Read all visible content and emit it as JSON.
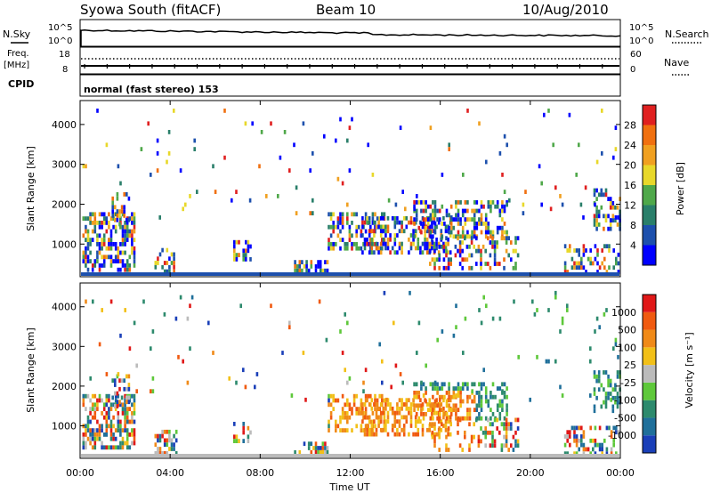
{
  "header": {
    "station": "Syowa South (fitACF)",
    "beam": "Beam 10",
    "date": "10/Aug/2010"
  },
  "noise_panel": {
    "left_label": "N.Sky",
    "right_label": "N.Search",
    "left_ticks": [
      "10^5",
      "10^0"
    ],
    "right_ticks": [
      "10^5",
      "10^0"
    ]
  },
  "freq_panel": {
    "left_label_top": "Freq.",
    "left_label_unit": "[MHz]",
    "left_label_bottom": "CPID",
    "right_label": "Nave",
    "left_ticks": [
      "18",
      "8"
    ],
    "right_ticks": [
      "60",
      "0"
    ]
  },
  "cpid_text": "normal (fast stereo) 153",
  "x_axis": {
    "label": "Time UT",
    "ticks": [
      "00:00",
      "04:00",
      "08:00",
      "12:00",
      "16:00",
      "20:00",
      "00:00"
    ]
  },
  "power_panel": {
    "ylabel": "Slant Range [km]",
    "yticks": [
      "4000",
      "3000",
      "2000",
      "1000"
    ],
    "colorbar_label": "Power [dB]",
    "colorbar_ticks": [
      "28",
      "24",
      "20",
      "16",
      "12",
      "8",
      "4"
    ],
    "colors": [
      "#0000ff",
      "#1d50ad",
      "#2a7f6a",
      "#4fa84a",
      "#e8d82a",
      "#f0a020",
      "#f07010",
      "#e02020"
    ]
  },
  "velocity_panel": {
    "ylabel": "Slant Range [km]",
    "yticks": [
      "4000",
      "3000",
      "2000",
      "1000"
    ],
    "colorbar_label": "Velocity [m s⁻¹]",
    "colorbar_ticks": [
      "1000",
      "500",
      "100",
      "25",
      "-25",
      "-100",
      "-500",
      "-1000"
    ],
    "colors": [
      "#1a3fb8",
      "#1f6f9a",
      "#2d8a6d",
      "#5ec83a",
      "#bbbbbb",
      "#f2c018",
      "#f08a18",
      "#f05a10",
      "#e01818"
    ]
  },
  "chart_data": {
    "type": "heatmap",
    "title": "Syowa South (fitACF)  Beam 10  10/Aug/2010",
    "xlabel": "Time UT",
    "ylabel": "Slant Range [km]",
    "xlim_hours": [
      0,
      24
    ],
    "ylim_km": [
      180,
      4600
    ],
    "regions": [
      {
        "t0": 0.1,
        "t1": 2.4,
        "r0": 400,
        "r1": 1800,
        "dens": 0.55
      },
      {
        "t0": 1.4,
        "t1": 2.2,
        "r0": 1500,
        "r1": 2300,
        "dens": 0.35
      },
      {
        "t0": 3.3,
        "t1": 4.3,
        "r0": 300,
        "r1": 900,
        "dens": 0.5
      },
      {
        "t0": 6.8,
        "t1": 7.6,
        "r0": 600,
        "r1": 1100,
        "dens": 0.5
      },
      {
        "t0": 9.5,
        "t1": 11.0,
        "r0": 300,
        "r1": 600,
        "dens": 0.6
      },
      {
        "t0": 11.0,
        "t1": 13.5,
        "r0": 900,
        "r1": 1800,
        "dens": 0.45
      },
      {
        "t0": 12.5,
        "t1": 16.5,
        "r0": 800,
        "r1": 1700,
        "dens": 0.45
      },
      {
        "t0": 14.8,
        "t1": 19.0,
        "r0": 1200,
        "r1": 2100,
        "dens": 0.45
      },
      {
        "t0": 15.5,
        "t1": 19.5,
        "r0": 400,
        "r1": 1200,
        "dens": 0.35
      },
      {
        "t0": 21.5,
        "t1": 23.9,
        "r0": 300,
        "r1": 1000,
        "dens": 0.4
      },
      {
        "t0": 22.8,
        "t1": 24.0,
        "r0": 1400,
        "r1": 2400,
        "dens": 0.4
      },
      {
        "t0": 0.0,
        "t1": 24.0,
        "r0": 1700,
        "r1": 4400,
        "dens": 0.018
      }
    ]
  }
}
